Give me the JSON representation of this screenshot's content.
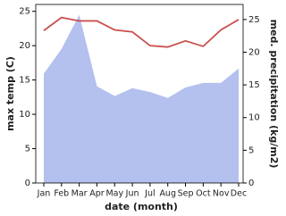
{
  "chart_data": {
    "type": "line-area",
    "x_label": "date (month)",
    "y_label": "max temp (C)",
    "y2_label": "med. precipitation (kg/m2)",
    "categories": [
      "Jan",
      "Feb",
      "Mar",
      "Apr",
      "May",
      "Jun",
      "Jul",
      "Aug",
      "Sep",
      "Oct",
      "Nov",
      "Dec"
    ],
    "series": [
      {
        "name": "max temp",
        "color": "#c9504f",
        "kind": "line",
        "values": [
          22.2,
          24.1,
          23.6,
          23.6,
          22.3,
          22.0,
          20.0,
          19.8,
          20.7,
          19.9,
          22.3,
          23.8
        ]
      },
      {
        "name": "med. precipitation",
        "color": "#b4c0ee",
        "kind": "area",
        "axis": "y2",
        "values": [
          16.7,
          20.5,
          25.7,
          14.8,
          13.3,
          14.5,
          13.9,
          13.0,
          14.6,
          15.3,
          15.3,
          17.5
        ]
      }
    ],
    "ylim": [
      0,
      26
    ],
    "yticks": [
      0,
      5,
      10,
      15,
      20,
      25
    ],
    "y2lim": [
      0,
      27.3
    ],
    "y2ticks": [
      0,
      5,
      10,
      15,
      20,
      25
    ]
  }
}
